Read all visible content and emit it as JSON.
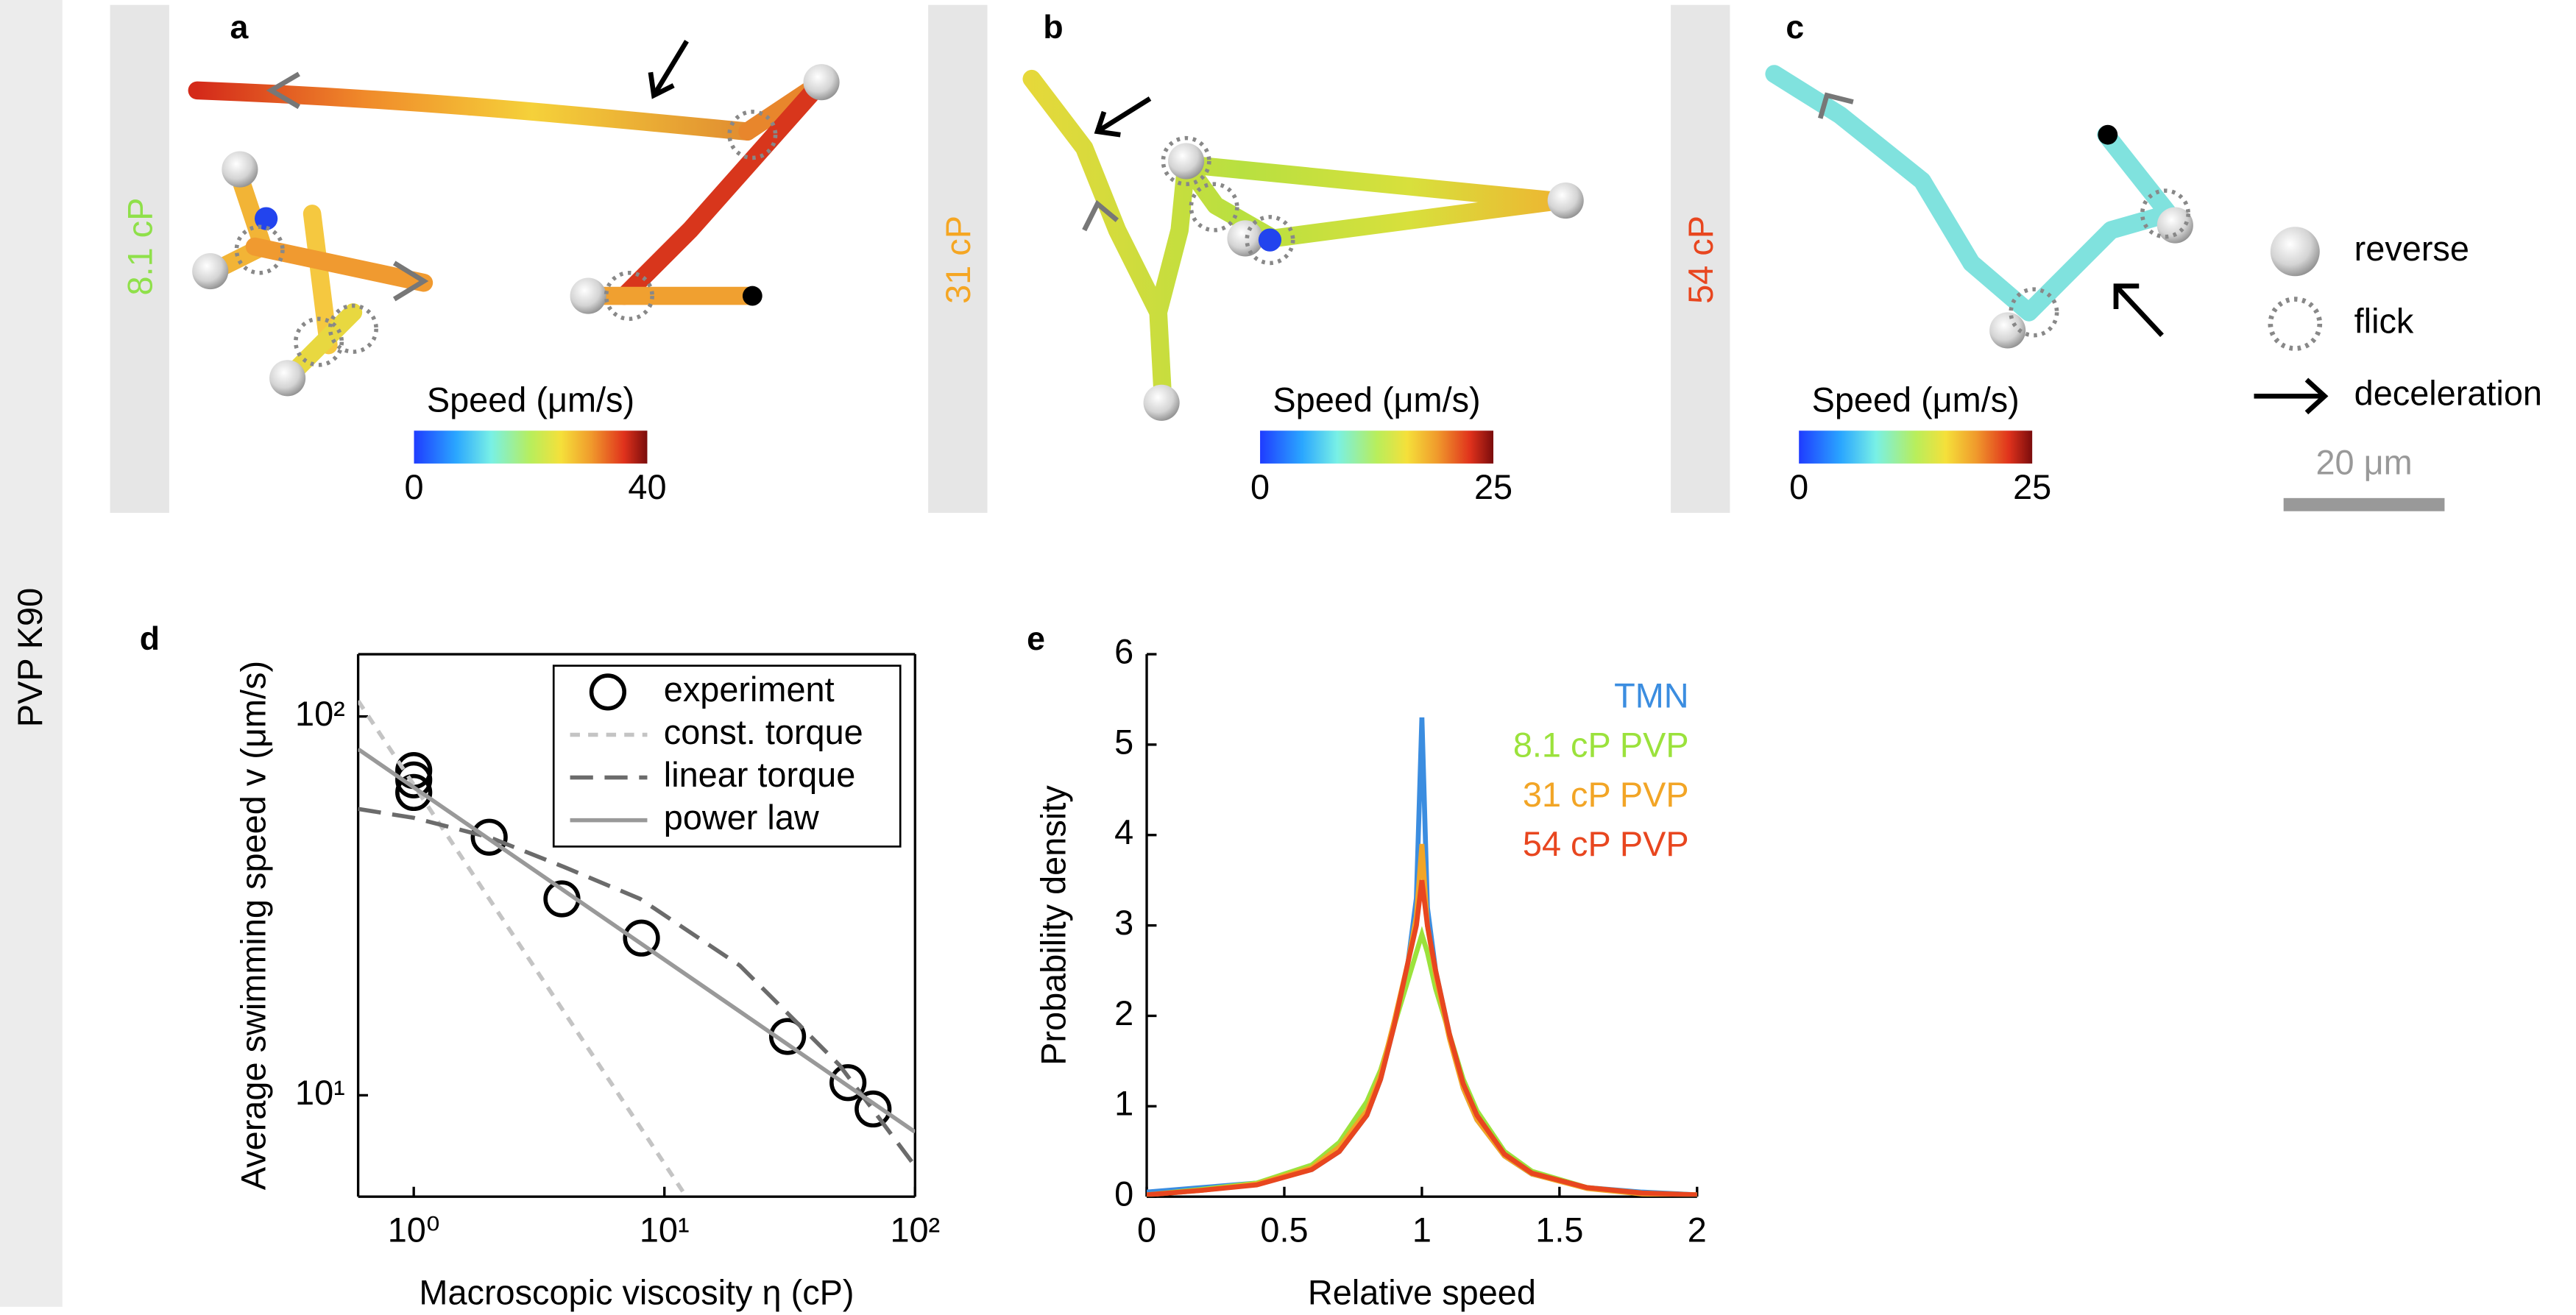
{
  "side_label": "PVP K90",
  "trajectory_panels": [
    {
      "letter": "a",
      "viscosity_label": "8.1 cP",
      "label_color": "#8fe04a",
      "colorbar_title": "Speed (μm/s)",
      "colorbar_ticks": [
        0,
        40
      ]
    },
    {
      "letter": "b",
      "viscosity_label": "31 cP",
      "label_color": "#f5a623",
      "colorbar_title": "Speed (μm/s)",
      "colorbar_ticks": [
        0,
        25
      ]
    },
    {
      "letter": "c",
      "viscosity_label": "54 cP",
      "label_color": "#e8461f",
      "colorbar_title": "Speed (μm/s)",
      "colorbar_ticks": [
        0,
        25
      ]
    }
  ],
  "legend": {
    "items": [
      "reverse",
      "flick",
      "deceleration"
    ],
    "scale_bar": "20 μm"
  },
  "chart_data": [
    {
      "type": "loglog",
      "panel": "d",
      "xlabel": "Macroscopic viscosity η (cP)",
      "ylabel": "Average swimming speed v  (μm/s)",
      "log_scale": true,
      "xlim": [
        0.6,
        100
      ],
      "ylim": [
        5.4,
        146
      ],
      "xticks": [
        {
          "value": 1,
          "label": "10⁰"
        },
        {
          "value": 10,
          "label": "10¹"
        },
        {
          "value": 100,
          "label": "10²"
        }
      ],
      "yticks": [
        {
          "value": 10,
          "label": "10¹"
        },
        {
          "value": 100,
          "label": "10²"
        }
      ],
      "legend": "upper right",
      "legend_box": true,
      "series": [
        {
          "name": "experiment",
          "line_style": "marker",
          "color": "#000000",
          "x": [
            1,
            1,
            1,
            2,
            3.9,
            8.1,
            31,
            54,
            68
          ],
          "values": [
            72,
            68,
            63,
            48,
            33,
            26,
            14.3,
            10.8,
            9.2
          ]
        },
        {
          "name": "const. torque",
          "line_style": "short-dash",
          "color": "#c4c4c4",
          "x": [
            0.6,
            1,
            2,
            4,
            8,
            12.2
          ],
          "values": [
            110,
            66,
            33,
            16.5,
            8.25,
            5.41
          ]
        },
        {
          "name": "linear torque",
          "line_style": "long-dash",
          "color": "#6b6b6b",
          "x": [
            0.6,
            1,
            2,
            4,
            8,
            20,
            50,
            100
          ],
          "values": [
            57,
            54,
            48,
            40,
            33,
            22,
            12,
            6.5
          ]
        },
        {
          "name": "power law",
          "line_style": "solid",
          "color": "#999999",
          "x": [
            0.6,
            100
          ],
          "values": [
            82,
            8
          ]
        }
      ]
    },
    {
      "type": "line",
      "panel": "e",
      "xlabel": "Relative speed",
      "ylabel": "Probability density",
      "xlim": [
        0,
        2
      ],
      "ylim": [
        0,
        6
      ],
      "xticks": [
        0,
        0.5,
        1,
        1.5,
        2
      ],
      "yticks": [
        0,
        1,
        2,
        3,
        4,
        5,
        6
      ],
      "legend": "upper right",
      "legend_box": false,
      "x": [
        0,
        0.2,
        0.4,
        0.6,
        0.7,
        0.8,
        0.85,
        0.9,
        0.95,
        0.98,
        1,
        1.02,
        1.05,
        1.1,
        1.15,
        1.2,
        1.3,
        1.4,
        1.6,
        1.8,
        2
      ],
      "series": [
        {
          "name": "TMN",
          "color": "#3b8de0",
          "values": [
            0.05,
            0.1,
            0.15,
            0.3,
            0.5,
            0.9,
            1.3,
            1.9,
            2.6,
            3.3,
            5.3,
            3.2,
            2.5,
            1.8,
            1.2,
            0.85,
            0.45,
            0.25,
            0.1,
            0.05,
            0.02
          ]
        },
        {
          "name": "8.1 cP PVP",
          "color": "#9be23c",
          "values": [
            0.02,
            0.08,
            0.15,
            0.35,
            0.6,
            1.05,
            1.4,
            1.9,
            2.4,
            2.7,
            2.9,
            2.7,
            2.3,
            1.8,
            1.3,
            0.95,
            0.5,
            0.28,
            0.1,
            0.04,
            0.02
          ]
        },
        {
          "name": "31 cP PVP",
          "color": "#f2a526",
          "values": [
            0.02,
            0.07,
            0.14,
            0.32,
            0.55,
            0.95,
            1.35,
            1.95,
            2.6,
            3.1,
            3.9,
            3,
            2.45,
            1.75,
            1.2,
            0.85,
            0.45,
            0.25,
            0.09,
            0.03,
            0.02
          ]
        },
        {
          "name": "54 cP PVP",
          "color": "#e8461f",
          "values": [
            0.02,
            0.07,
            0.13,
            0.3,
            0.5,
            0.9,
            1.3,
            1.9,
            2.6,
            3,
            3.5,
            3,
            2.5,
            1.8,
            1.25,
            0.9,
            0.47,
            0.26,
            0.1,
            0.04,
            0.02
          ]
        }
      ]
    }
  ]
}
